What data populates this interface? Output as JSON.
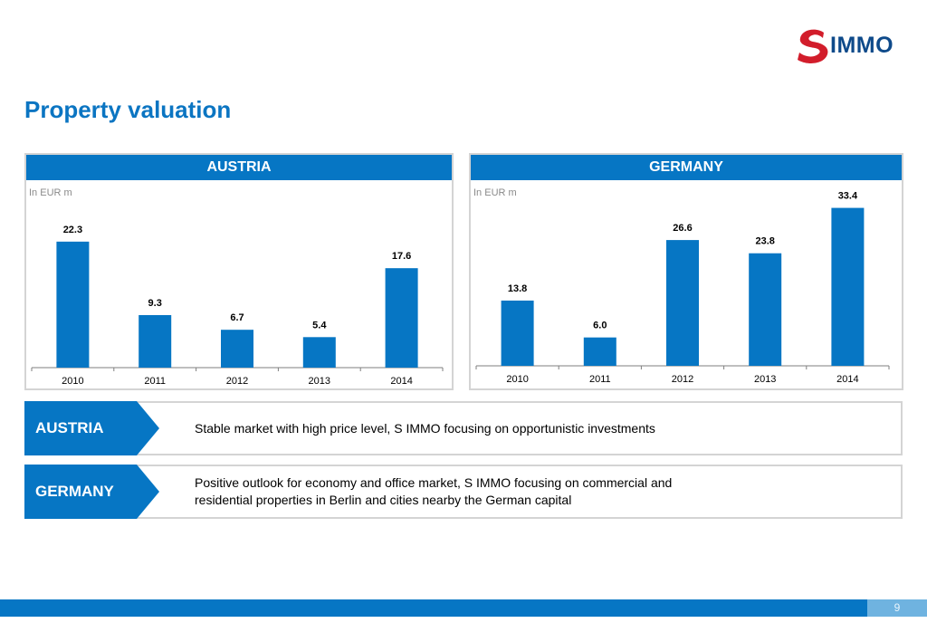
{
  "logo": {
    "text": "IMMO",
    "icon": "s-immo-logo-icon",
    "mark_color": "#d21d2b",
    "text_color": "#0e4a8a"
  },
  "page": {
    "title": "Property valuation",
    "number": "9"
  },
  "colors": {
    "accent": "#0676c4",
    "bar": "#0676c4",
    "footer_light": "#6fb3e0"
  },
  "chart_data": [
    {
      "type": "bar",
      "title": "AUSTRIA",
      "unit_label": "In EUR m",
      "xlabel": "",
      "ylabel": "",
      "categories": [
        "2010",
        "2011",
        "2012",
        "2013",
        "2014"
      ],
      "values": [
        22.3,
        9.3,
        6.7,
        5.4,
        17.6
      ],
      "value_labels": [
        "22.3",
        "9.3",
        "6.7",
        "5.4",
        "17.6"
      ],
      "ylim": [
        0,
        25
      ],
      "grid": false,
      "legend": "none"
    },
    {
      "type": "bar",
      "title": "GERMANY",
      "unit_label": "In EUR m",
      "xlabel": "",
      "ylabel": "",
      "categories": [
        "2010",
        "2011",
        "2012",
        "2013",
        "2014"
      ],
      "values": [
        13.8,
        6.0,
        26.6,
        23.8,
        33.4
      ],
      "value_labels": [
        "13.8",
        "6.0",
        "26.6",
        "23.8",
        "33.4"
      ],
      "ylim": [
        0,
        36
      ],
      "grid": false,
      "legend": "none"
    }
  ],
  "summary": [
    {
      "label": "AUSTRIA",
      "lines": [
        "Stable market with high price level, S IMMO focusing on opportunistic investments"
      ]
    },
    {
      "label": "GERMANY",
      "lines": [
        "Positive outlook for economy and office market, S IMMO focusing on commercial and",
        "residential properties in Berlin and cities nearby the German capital"
      ]
    }
  ]
}
